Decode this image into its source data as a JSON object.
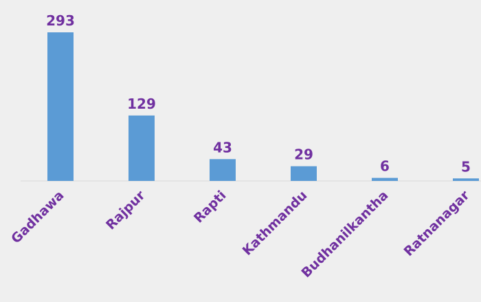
{
  "chart_data": {
    "type": "bar",
    "categories": [
      "Gadhawa",
      "Rajpur",
      "Rapti",
      "Kathmandu",
      "Budhanilkantha",
      "Ratnanagar"
    ],
    "values": [
      293,
      129,
      43,
      29,
      6,
      5
    ],
    "title": "",
    "xlabel": "",
    "ylabel": "",
    "ylim": [
      0,
      293
    ],
    "grid": false,
    "legend": "none",
    "data_labels": true
  },
  "colors": {
    "background": "#efefef",
    "bar": "#5b9bd5",
    "label": "#7030a0",
    "baseline": "#d9d9d9"
  }
}
